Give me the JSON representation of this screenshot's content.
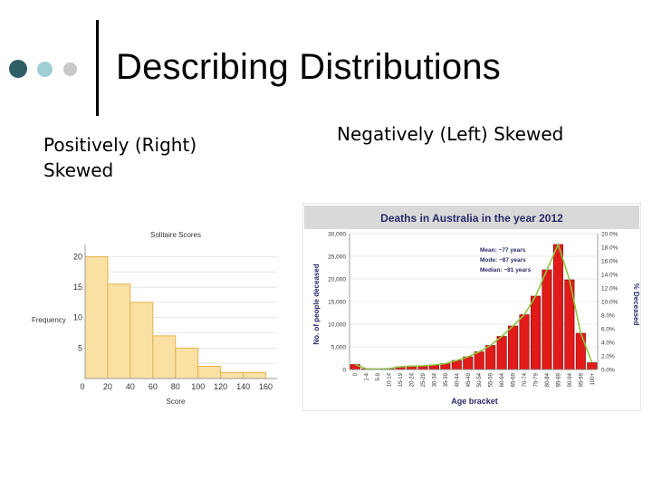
{
  "slide": {
    "title": "Describing Distributions",
    "left_heading": "Positively (Right) Skewed",
    "right_heading": "Negatively (Left) Skewed"
  },
  "colors": {
    "dot_dark": "#2f5f66",
    "dot_light": "#9fcfd4",
    "dot_gray": "#c8c8c8",
    "hist_fill": "#fbe0a4",
    "hist_stroke": "#e3b24f",
    "deaths_fill": "#e11a1a",
    "deaths_line": "#8cc63f",
    "deaths_title_bg": "#d9d9d9"
  },
  "chart_data": [
    {
      "type": "bar",
      "title": "Solitaire Scores",
      "xlabel": "Score",
      "ylabel": "Frequency",
      "bin_edges": [
        0,
        20,
        40,
        60,
        80,
        100,
        120,
        140,
        160
      ],
      "x_ticks": [
        "0",
        "20",
        "40",
        "60",
        "80",
        "100",
        "120",
        "140",
        "160"
      ],
      "y_ticks": [
        "5",
        "10",
        "15",
        "20"
      ],
      "values": [
        20,
        15.5,
        12.5,
        7,
        5,
        2,
        1,
        1
      ],
      "xlim": [
        0,
        170
      ],
      "ylim": [
        0,
        22
      ],
      "grid": true
    },
    {
      "type": "bar",
      "title": "Deaths in Australia in the year 2012",
      "xlabel": "Age bracket",
      "ylabel": "No. of people deceased",
      "y2label": "% Deceased",
      "categories": [
        "0",
        "1-4",
        "5-9",
        "10-14",
        "15-19",
        "20-24",
        "25-29",
        "30-34",
        "35-39",
        "40-44",
        "45-49",
        "50-54",
        "55-59",
        "60-64",
        "65-69",
        "70-74",
        "75-79",
        "80-84",
        "85-89",
        "90-94",
        "95-99",
        "100+"
      ],
      "values": [
        1100,
        150,
        100,
        200,
        600,
        750,
        800,
        1000,
        1300,
        2000,
        2800,
        3900,
        5300,
        7300,
        9600,
        12100,
        16200,
        22000,
        27600,
        19800,
        8000,
        1500
      ],
      "y_ticks": [
        "0",
        "5,000",
        "10,000",
        "15,000",
        "20,000",
        "25,000",
        "30,000"
      ],
      "y2_ticks": [
        "0.0%",
        "2.0%",
        "4.0%",
        "6.0%",
        "8.0%",
        "10.0%",
        "12.0%",
        "14.0%",
        "16.0%",
        "18.0%",
        "20.0%"
      ],
      "ylim": [
        0,
        30000
      ],
      "y2lim": [
        0,
        0.2
      ],
      "annotations": [
        "Mean: ~77 years",
        "Mode: ~87 years",
        "Median: ~81 years"
      ],
      "grid": true
    }
  ]
}
